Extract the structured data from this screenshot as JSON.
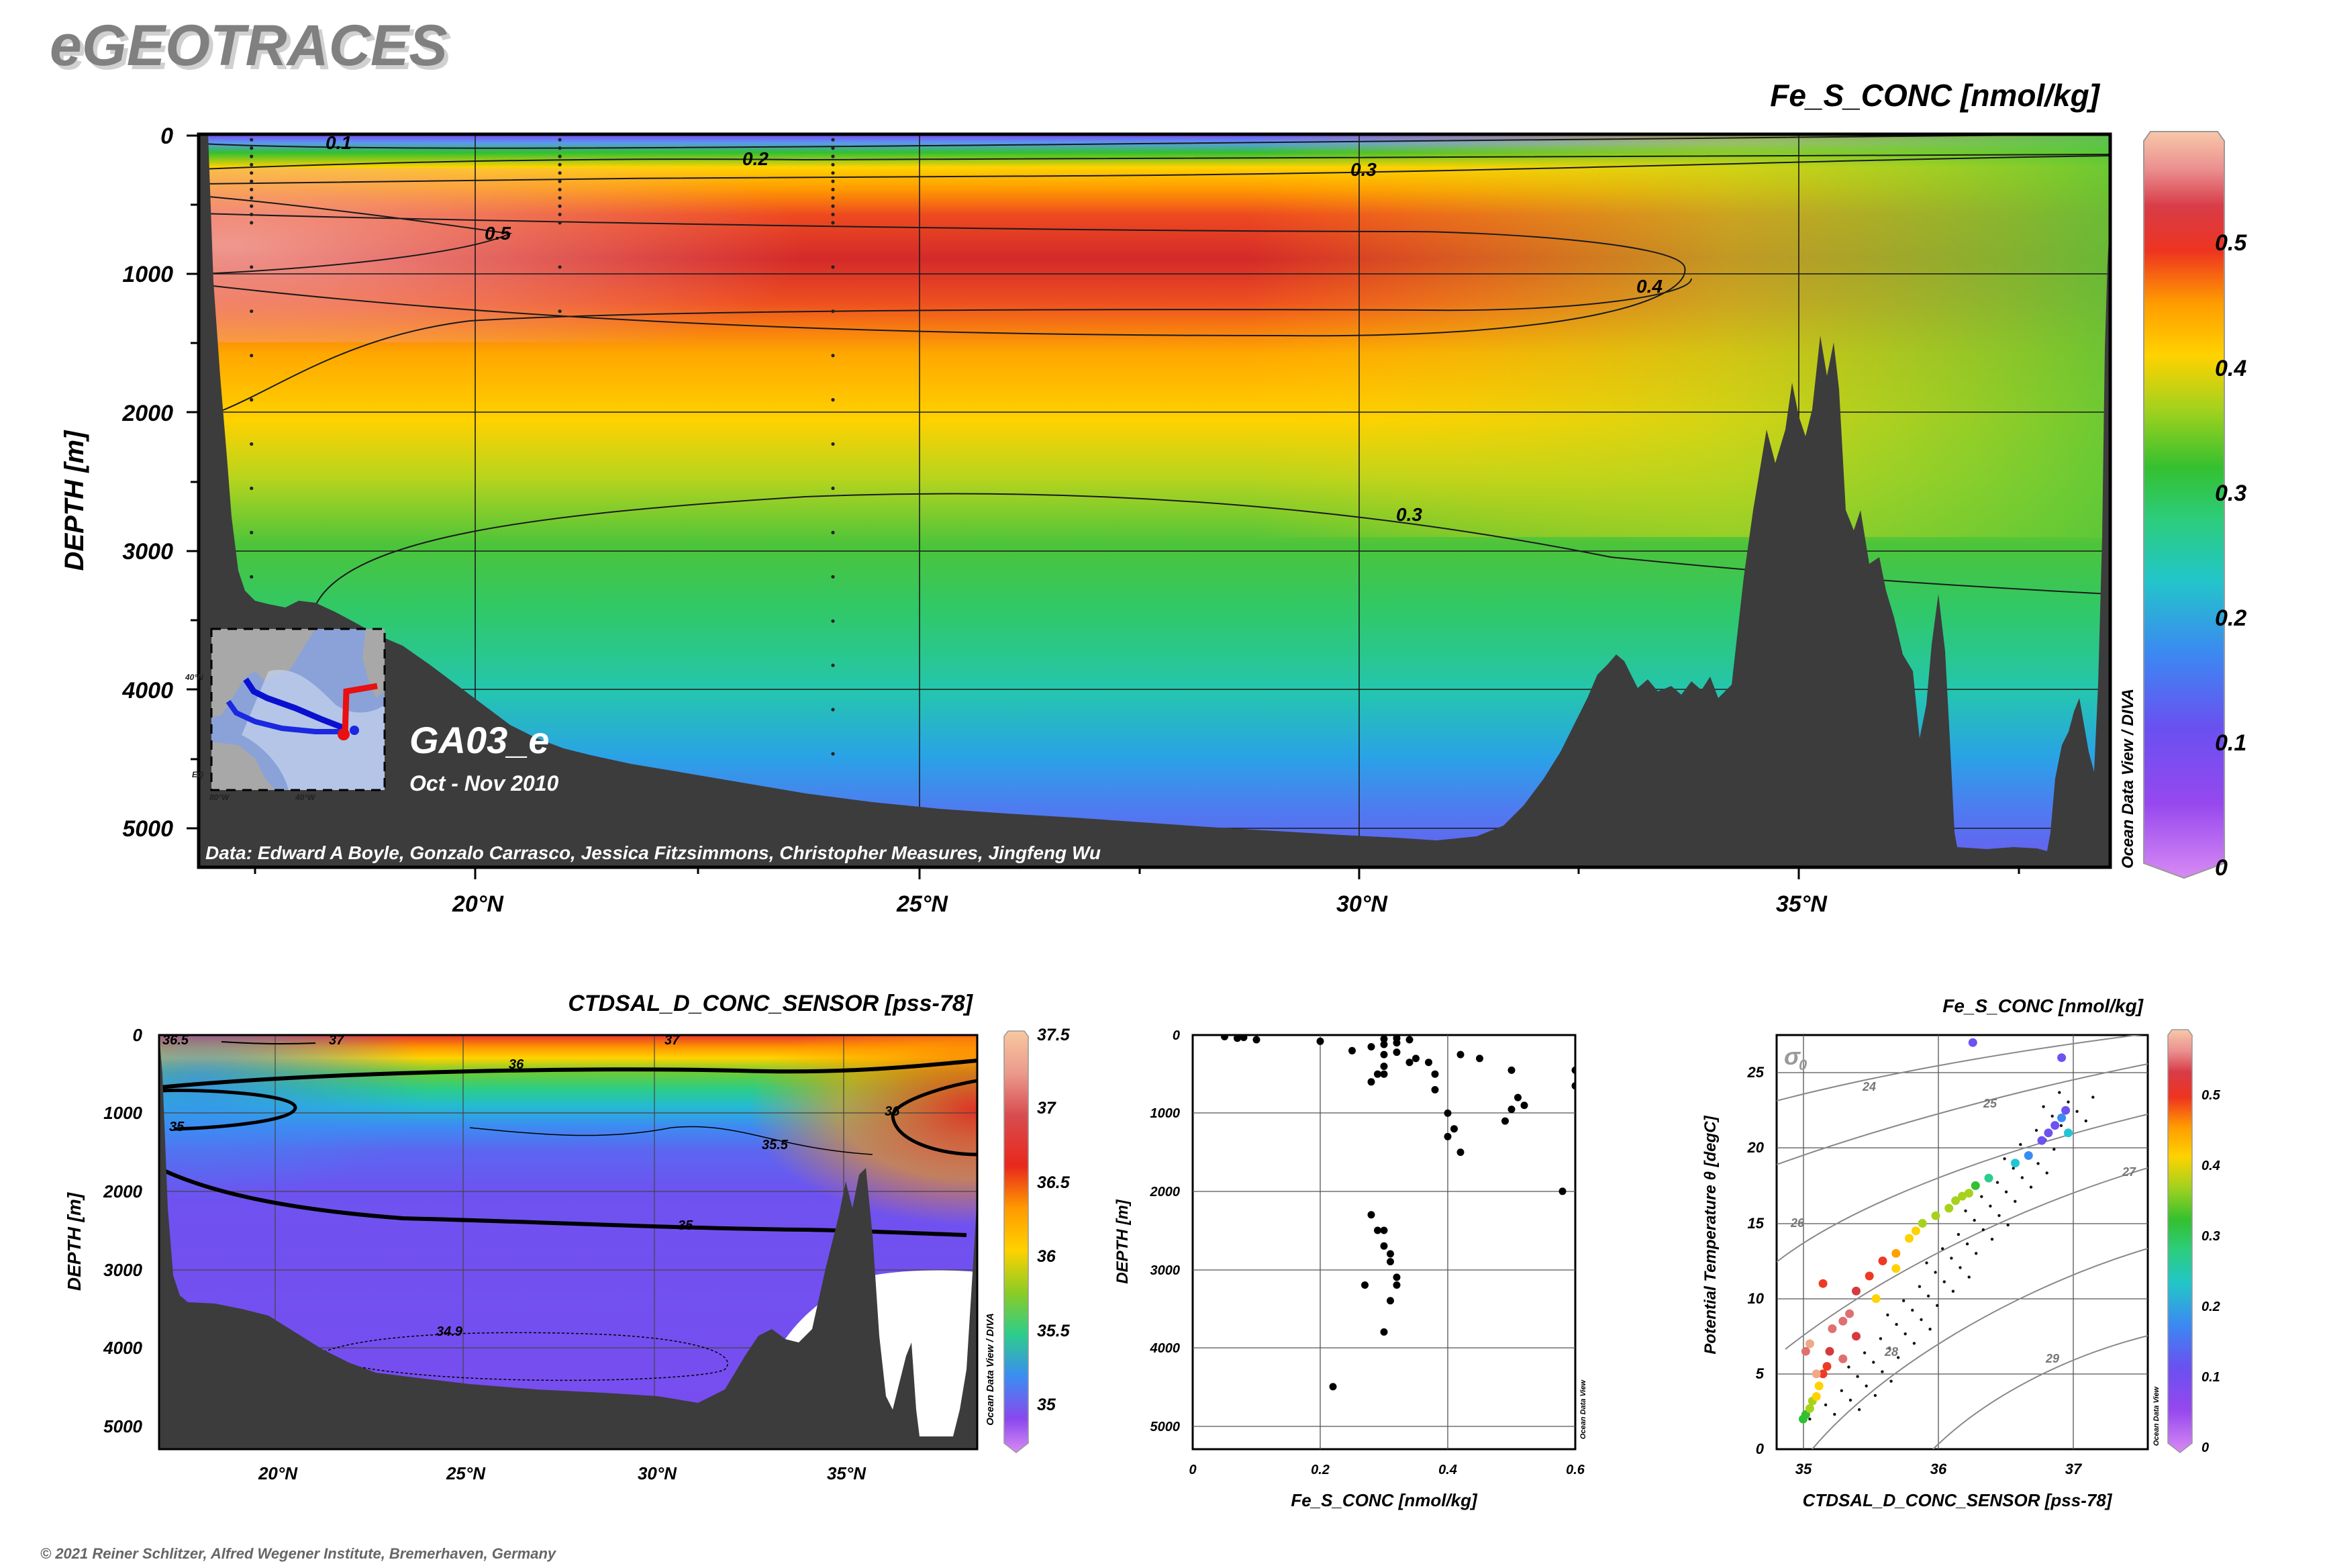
{
  "header": {
    "brand": "eGEOTRACES",
    "copyright": "© 2021 Reiner Schlitzer, Alfred Wegener Institute, Bremerhaven, Germany"
  },
  "main_section": {
    "variable_title": "Fe_S_CONC [nmol/kg]",
    "y_axis_label": "DEPTH [m]",
    "y_ticks": [
      "0",
      "1000",
      "2000",
      "3000",
      "4000",
      "5000"
    ],
    "x_ticks": [
      "20°N",
      "25°N",
      "30°N",
      "35°N"
    ],
    "cruise_name": "GA03_e",
    "cruise_dates": "Oct - Nov 2010",
    "data_credit": "Data: Edward A Boyle, Gonzalo Carrasco, Jessica Fitzsimmons, Christopher Measures, Jingfeng Wu",
    "software_credit": "Ocean Data View / DIVA",
    "contour_labels": [
      "0.1",
      "0.2",
      "0.3",
      "0.5",
      "0.4",
      "0.3"
    ],
    "colorbar_ticks": [
      "0.5",
      "0.4",
      "0.3",
      "0.2",
      "0.1",
      "0"
    ],
    "inset_map": {
      "lat_label": "40°N",
      "lat_label_2": "EQ",
      "lon_labels": [
        "80°W",
        "40°W"
      ]
    }
  },
  "salinity_section": {
    "variable_title": "CTDSAL_D_CONC_SENSOR [pss-78]",
    "y_axis_label": "DEPTH [m]",
    "y_ticks": [
      "0",
      "1000",
      "2000",
      "3000",
      "4000",
      "5000"
    ],
    "x_ticks": [
      "20°N",
      "25°N",
      "30°N",
      "35°N"
    ],
    "contour_labels": [
      "36.5",
      "37",
      "37",
      "36",
      "35",
      "36",
      "35.5",
      "35",
      "34.9"
    ],
    "colorbar_ticks": [
      "37.5",
      "37",
      "36.5",
      "36",
      "35.5",
      "35"
    ],
    "software_credit": "Ocean Data View / DIVA"
  },
  "profile_plot": {
    "x_axis_label": "Fe_S_CONC [nmol/kg]",
    "y_axis_label": "DEPTH [m]",
    "x_ticks": [
      "0",
      "0.2",
      "0.4",
      "0.6"
    ],
    "y_ticks": [
      "0",
      "1000",
      "2000",
      "3000",
      "4000",
      "5000"
    ],
    "software_credit": "Ocean Data View"
  },
  "ts_plot": {
    "color_variable_title": "Fe_S_CONC [nmol/kg]",
    "x_axis_label": "CTDSAL_D_CONC_SENSOR [pss-78]",
    "y_axis_label": "Potential Temperature θ [degC]",
    "x_ticks": [
      "35",
      "36",
      "37"
    ],
    "y_ticks": [
      "0",
      "5",
      "10",
      "15",
      "20",
      "25"
    ],
    "sigma_symbol": "σ",
    "sigma_subscript": "0",
    "isopycnal_labels": [
      "24",
      "25",
      "26",
      "27",
      "28",
      "29"
    ],
    "colorbar_ticks": [
      "0.5",
      "0.4",
      "0.3",
      "0.2",
      "0.1",
      "0"
    ],
    "software_credit": "Ocean Data View"
  },
  "chart_data": [
    {
      "type": "heatmap",
      "title": "Fe_S_CONC [nmol/kg]",
      "xlabel": "",
      "ylabel": "DEPTH [m]",
      "xlim": [
        16.8,
        38.5
      ],
      "ylim": [
        5300,
        0
      ],
      "zlim": [
        0,
        0.58
      ],
      "contour_levels": [
        0.1,
        0.2,
        0.3,
        0.4,
        0.5
      ],
      "colorscale": [
        "#c674ee",
        "#8a44ee",
        "#6d52f0",
        "#3a8cf2",
        "#22c6d2",
        "#2ccd8c",
        "#30c030",
        "#a7d21c",
        "#ffd200",
        "#ffa000",
        "#ee3a24",
        "#d43a3e",
        "#e07070",
        "#f0a888",
        "#f8c2a0"
      ],
      "profile_latitudes": [
        17.4,
        20.9,
        24.0
      ]
    },
    {
      "type": "heatmap",
      "title": "CTDSAL_D_CONC_SENSOR [pss-78]",
      "xlabel": "",
      "ylabel": "DEPTH [m]",
      "xlim": [
        16.8,
        38.5
      ],
      "ylim": [
        5300,
        0
      ],
      "zlim": [
        34.8,
        37.5
      ],
      "contour_levels": [
        34.9,
        35,
        35.5,
        36,
        36.5,
        37
      ]
    },
    {
      "type": "scatter",
      "xlabel": "Fe_S_CONC [nmol/kg]",
      "ylabel": "DEPTH [m]",
      "xlim": [
        0,
        0.6
      ],
      "ylim": [
        5300,
        0
      ],
      "x": [
        0.05,
        0.07,
        0.08,
        0.1,
        0.2,
        0.25,
        0.28,
        0.3,
        0.32,
        0.35,
        0.38,
        0.42,
        0.45,
        0.5,
        0.6,
        0.6,
        0.3,
        0.3,
        0.34,
        0.37,
        0.28,
        0.29,
        0.3,
        0.32,
        0.3,
        0.32,
        0.34,
        0.38,
        0.4,
        0.4,
        0.41,
        0.42,
        0.5,
        0.49,
        0.51,
        0.52,
        0.58,
        0.3,
        0.31,
        0.32,
        0.31,
        0.3,
        0.29,
        0.28,
        0.27,
        0.32,
        0.31,
        0.3,
        0.22
      ],
      "y": [
        20,
        40,
        30,
        60,
        80,
        200,
        150,
        250,
        220,
        300,
        500,
        250,
        300,
        450,
        450,
        650,
        500,
        400,
        350,
        350,
        600,
        500,
        120,
        100,
        50,
        40,
        60,
        700,
        1000,
        1300,
        1200,
        1500,
        950,
        1100,
        800,
        900,
        2000,
        3800,
        3400,
        3200,
        2900,
        2700,
        2500,
        2300,
        3200,
        3100,
        2800,
        2500,
        4500
      ]
    },
    {
      "type": "scatter",
      "xlabel": "CTDSAL_D_CONC_SENSOR [pss-78]",
      "ylabel": "Potential Temperature θ [degC]",
      "xlim": [
        34.7,
        37.5
      ],
      "ylim": [
        0,
        27.5
      ],
      "isopycnals": [
        24,
        25,
        26,
        27,
        28,
        29
      ],
      "series": [
        {
          "x": [
            34.9,
            34.92,
            34.95,
            34.97,
            35.0,
            35.02,
            35.05,
            35.08,
            35.1,
            35.12,
            35.2,
            35.25,
            35.3,
            35.4,
            35.5,
            35.6,
            35.7,
            35.75,
            35.8,
            35.9,
            36.0,
            36.05,
            36.1,
            36.15,
            36.2,
            36.3,
            36.5,
            36.6,
            36.7,
            36.75,
            36.8,
            36.85,
            36.88,
            36.9,
            36.18,
            36.85,
            35.05,
            35.2,
            35.3,
            35.45,
            35.6,
            35.0,
            34.92,
            34.95
          ],
          "y": [
            2.0,
            2.3,
            2.7,
            3.2,
            3.5,
            4.2,
            5.0,
            5.5,
            6.5,
            8.0,
            8.5,
            9.0,
            10.5,
            11.5,
            12.5,
            13.0,
            14.0,
            14.5,
            15.0,
            15.5,
            16.0,
            16.5,
            16.8,
            17.0,
            17.5,
            18.0,
            19.0,
            19.5,
            20.5,
            21.0,
            21.5,
            22.0,
            22.5,
            21.0,
            27.0,
            26.0,
            11.0,
            6.0,
            7.5,
            10.0,
            12.0,
            5.0,
            6.5,
            7.0
          ],
          "z": [
            0.25,
            0.25,
            0.3,
            0.3,
            0.32,
            0.35,
            0.4,
            0.4,
            0.45,
            0.5,
            0.5,
            0.48,
            0.45,
            0.42,
            0.4,
            0.38,
            0.35,
            0.32,
            0.3,
            0.3,
            0.3,
            0.28,
            0.3,
            0.3,
            0.25,
            0.2,
            0.15,
            0.12,
            0.1,
            0.08,
            0.1,
            0.12,
            0.1,
            0.15,
            0.1,
            0.1,
            0.4,
            0.5,
            0.45,
            0.35,
            0.32,
            0.55,
            0.5,
            0.52
          ]
        }
      ]
    }
  ]
}
